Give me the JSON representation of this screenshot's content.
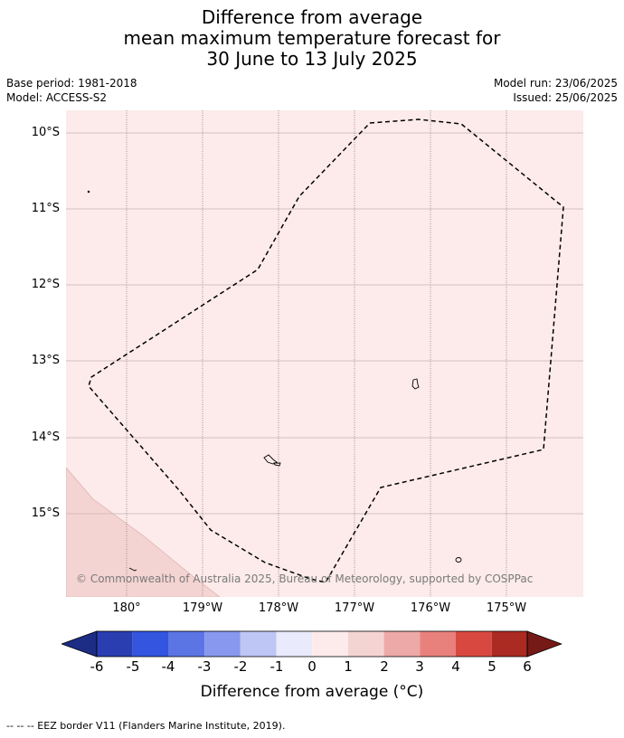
{
  "title": {
    "line1": "Difference from average",
    "line2": "mean maximum temperature forecast for",
    "line3": "30 June to 13 July 2025"
  },
  "meta": {
    "base_period": "Base period: 1981-2018",
    "model": "Model: ACCESS-S2",
    "model_run": "Model run: 23/06/2025",
    "issued": "Issued: 25/06/2025"
  },
  "map": {
    "background_color": "#fcebea",
    "warm_zone_color": "#f4d4d3",
    "gridline_color": "#c9b3b3",
    "latitude_labels": [
      "10°S",
      "11°S",
      "12°S",
      "13°S",
      "14°S",
      "15°S"
    ],
    "longitude_labels": [
      "180°",
      "179°W",
      "178°W",
      "177°W",
      "176°W",
      "175°W"
    ],
    "eez_border_style": "dashed black",
    "copyright": "© Commonwealth of Australia 2025, Bureau of Meteorology, supported by COSPPac"
  },
  "colorbar": {
    "ticks": [
      "-6",
      "-5",
      "-4",
      "-3",
      "-2",
      "-1",
      "0",
      "1",
      "2",
      "3",
      "4",
      "5",
      "6"
    ],
    "colors": [
      "#1d2d85",
      "#2a3eb1",
      "#3355e0",
      "#5c75e5",
      "#8798ee",
      "#bec6f6",
      "#e9ebfd",
      "#fcebea",
      "#f4d4d3",
      "#eda9a7",
      "#e8817c",
      "#d94840",
      "#ab2a22",
      "#761a17"
    ],
    "label": "Difference from average (°C)"
  },
  "footnote": "--  --  -- EEZ border V11 (Flanders Marine Institute, 2019)."
}
